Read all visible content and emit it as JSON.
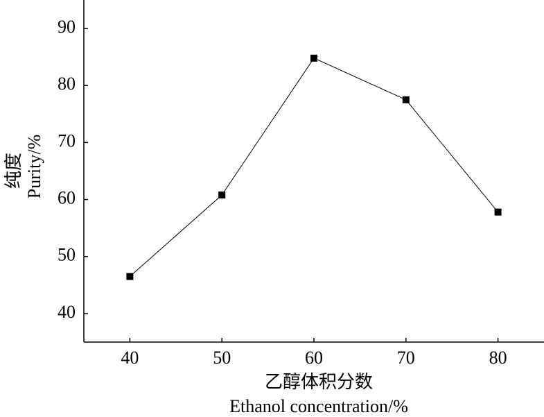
{
  "chart_data": {
    "type": "line",
    "x_label": [
      "乙醇体积分数",
      "Ethanol concentration/%"
    ],
    "y_label": [
      "纯度",
      "Purity/%"
    ],
    "x": [
      40,
      50,
      60,
      70,
      80
    ],
    "series": [
      {
        "color": "#000000",
        "values": [
          46.5,
          60.8,
          84.8,
          77.5,
          57.8
        ]
      }
    ],
    "xlim": [
      35,
      85
    ],
    "xticks": [
      40,
      50,
      60,
      70,
      80
    ],
    "ylim": [
      35,
      95
    ],
    "yticks": [
      40,
      50,
      60,
      70,
      80,
      90
    ],
    "marker": "square",
    "grid": false
  }
}
